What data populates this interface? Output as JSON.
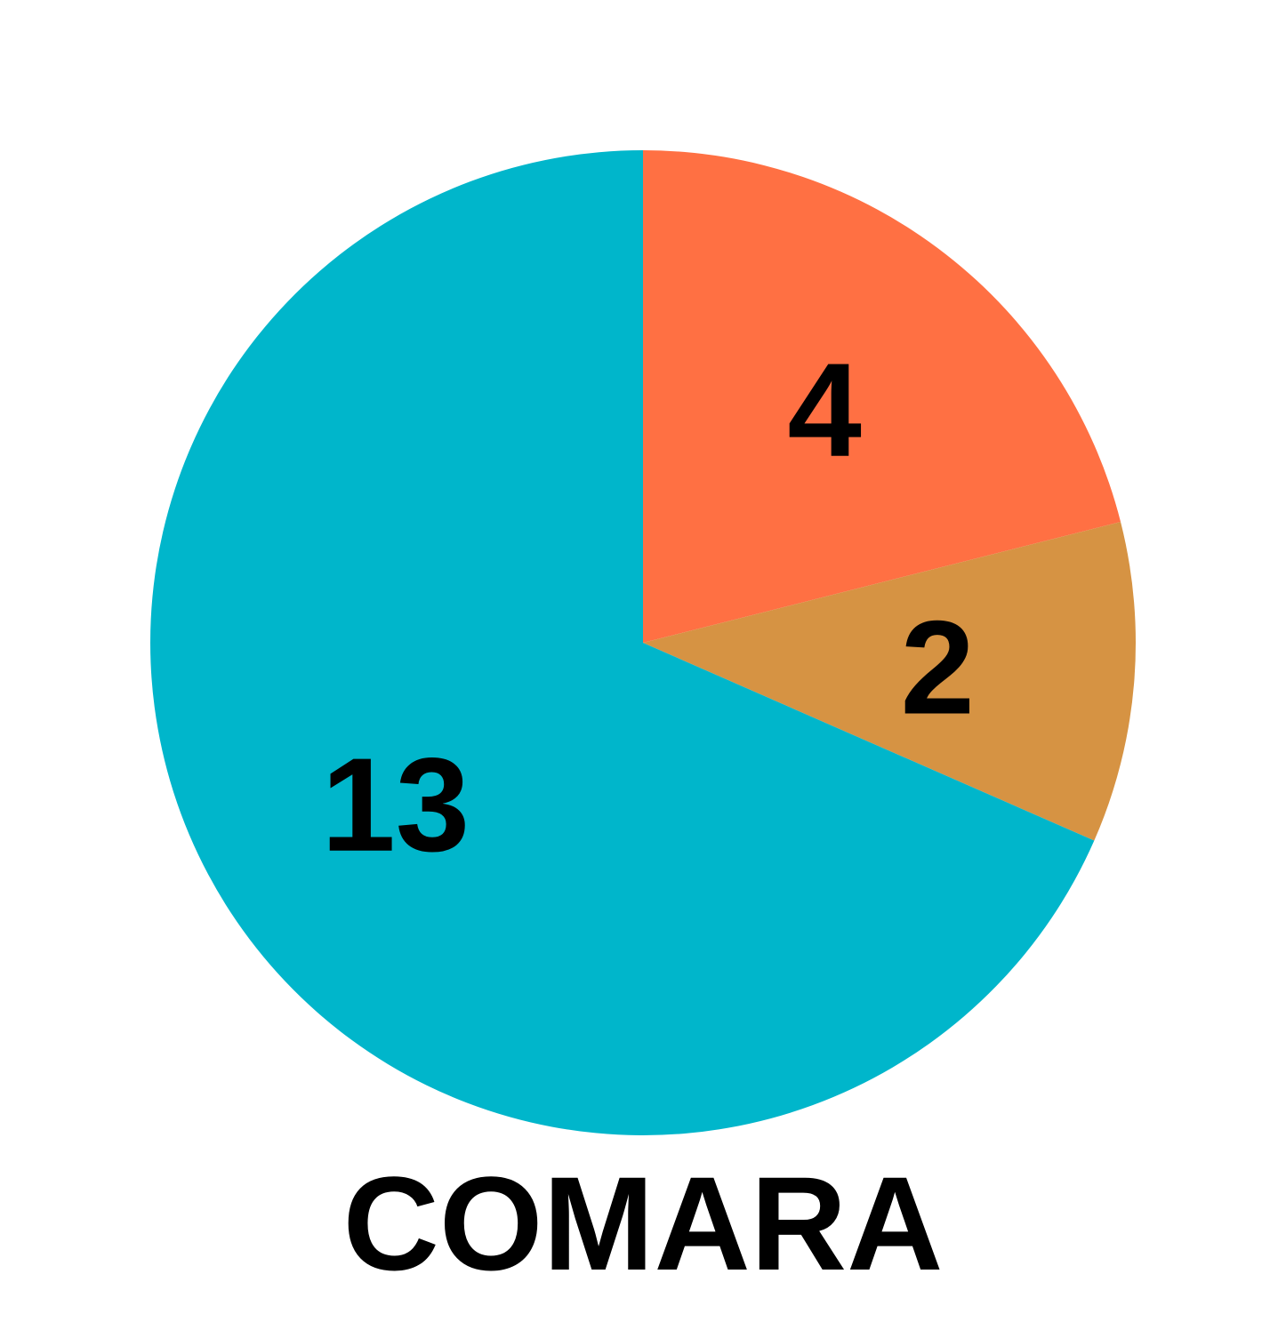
{
  "chart_data": {
    "type": "pie",
    "title": "COMARA",
    "slices": [
      {
        "value": 4,
        "label": "4",
        "color": "#FF7043"
      },
      {
        "value": 2,
        "label": "2",
        "color": "#D69343"
      },
      {
        "value": 13,
        "label": "13",
        "color": "#00B6CB"
      }
    ],
    "start_angle_deg": 0,
    "direction": "clockwise"
  }
}
